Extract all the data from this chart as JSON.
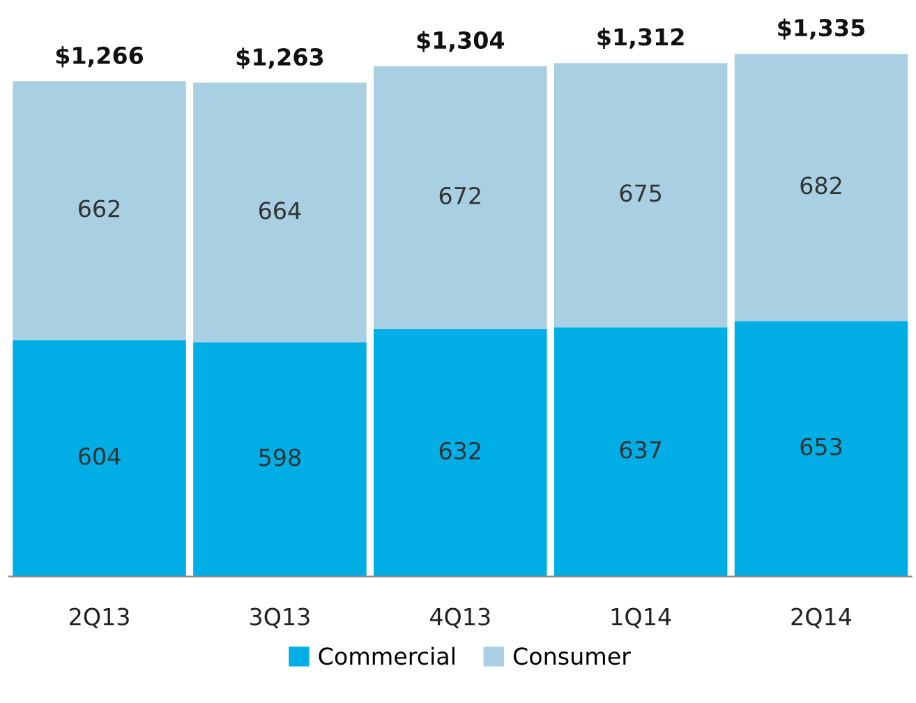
{
  "chart_data": {
    "type": "bar",
    "stacked": true,
    "categories": [
      "2Q13",
      "3Q13",
      "4Q13",
      "1Q14",
      "2Q14"
    ],
    "series": [
      {
        "name": "Commercial",
        "color": "#00aee6",
        "values": [
          604,
          598,
          632,
          637,
          653
        ]
      },
      {
        "name": "Consumer",
        "color": "#a8d0e2",
        "values": [
          662,
          664,
          672,
          675,
          682
        ]
      }
    ],
    "data_labels": true,
    "totals": [
      "$1,266",
      "$1,263",
      "$1,304",
      "$1,312",
      "$1,335"
    ],
    "legend": "bottom",
    "grid": false
  }
}
